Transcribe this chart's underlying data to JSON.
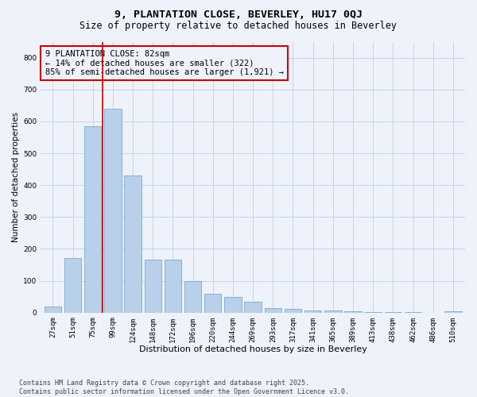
{
  "title1": "9, PLANTATION CLOSE, BEVERLEY, HU17 0QJ",
  "title2": "Size of property relative to detached houses in Beverley",
  "xlabel": "Distribution of detached houses by size in Beverley",
  "ylabel": "Number of detached properties",
  "categories": [
    "27sqm",
    "51sqm",
    "75sqm",
    "99sqm",
    "124sqm",
    "148sqm",
    "172sqm",
    "196sqm",
    "220sqm",
    "244sqm",
    "269sqm",
    "293sqm",
    "317sqm",
    "341sqm",
    "365sqm",
    "389sqm",
    "413sqm",
    "438sqm",
    "462sqm",
    "486sqm",
    "510sqm"
  ],
  "values": [
    20,
    170,
    585,
    640,
    430,
    165,
    165,
    100,
    58,
    48,
    33,
    15,
    13,
    8,
    8,
    5,
    3,
    2,
    1,
    0,
    5
  ],
  "bar_color": "#b8d0ea",
  "bar_edge_color": "#7aaad0",
  "grid_color": "#c8d4e8",
  "bg_color": "#eef2fa",
  "vline_color": "#cc0000",
  "vline_position": 2.5,
  "annotation_text": "9 PLANTATION CLOSE: 82sqm\n← 14% of detached houses are smaller (322)\n85% of semi-detached houses are larger (1,921) →",
  "annotation_box_color": "#cc0000",
  "footer1": "Contains HM Land Registry data © Crown copyright and database right 2025.",
  "footer2": "Contains public sector information licensed under the Open Government Licence v3.0.",
  "ylim": [
    0,
    850
  ],
  "yticks": [
    0,
    100,
    200,
    300,
    400,
    500,
    600,
    700,
    800
  ],
  "title1_fontsize": 9.5,
  "title2_fontsize": 8.5,
  "xlabel_fontsize": 8,
  "ylabel_fontsize": 7.5,
  "tick_fontsize": 6.5,
  "annotation_fontsize": 7.5,
  "footer_fontsize": 6
}
